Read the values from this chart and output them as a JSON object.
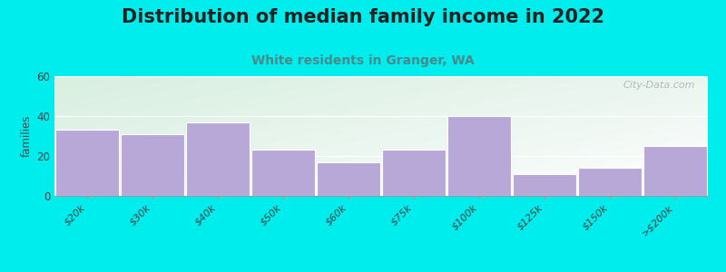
{
  "title": "Distribution of median family income in 2022",
  "subtitle": "White residents in Granger, WA",
  "categories": [
    "$20k",
    "$30k",
    "$40k",
    "$50k",
    "$60k",
    "$75k",
    "$100k",
    "$125k",
    "$150k",
    ">$200k"
  ],
  "values": [
    33,
    31,
    37,
    23,
    17,
    23,
    40,
    11,
    14,
    25
  ],
  "bar_color": "#b8a8d8",
  "background_outer": "#00eded",
  "ylabel": "families",
  "ylim": [
    0,
    60
  ],
  "yticks": [
    0,
    20,
    40,
    60
  ],
  "title_fontsize": 15,
  "subtitle_fontsize": 10,
  "subtitle_color": "#4a8a8a",
  "watermark": "City-Data.com",
  "bg_color_topleft": "#d8f0e0",
  "bg_color_topright": "#e8f4f0",
  "bg_color_bottomleft": "#e8f4ee",
  "bg_color_bottomright": "#ffffff"
}
